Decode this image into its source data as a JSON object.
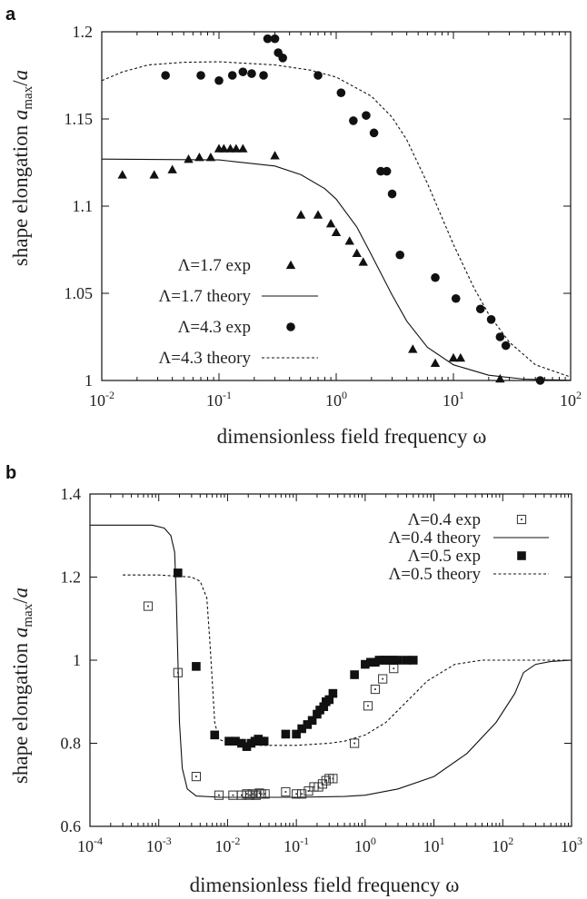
{
  "chart_data": [
    {
      "panel": "a",
      "type": "scatter",
      "xscale": "log",
      "xlim": [
        0.01,
        100
      ],
      "ylim": [
        1,
        1.2
      ],
      "xticks": [
        "10-2",
        "10-1",
        "100",
        "101",
        "102"
      ],
      "yticks": [
        "1",
        "1.05",
        "1.1",
        "1.15",
        "1.2"
      ],
      "xlabel": "dimensionless  field frequency ω",
      "ylabel": "shape elongation amax/a",
      "legend_position": "bottom-left",
      "series": [
        {
          "name": "Λ=1.7 exp",
          "kind": "markers",
          "marker": "triangle",
          "points": [
            [
              0.015,
              1.118
            ],
            [
              0.028,
              1.118
            ],
            [
              0.04,
              1.121
            ],
            [
              0.055,
              1.127
            ],
            [
              0.068,
              1.128
            ],
            [
              0.085,
              1.128
            ],
            [
              0.1,
              1.133
            ],
            [
              0.11,
              1.133
            ],
            [
              0.125,
              1.133
            ],
            [
              0.14,
              1.133
            ],
            [
              0.16,
              1.133
            ],
            [
              0.3,
              1.129
            ],
            [
              0.5,
              1.095
            ],
            [
              0.7,
              1.095
            ],
            [
              0.9,
              1.09
            ],
            [
              1.0,
              1.085
            ],
            [
              1.3,
              1.08
            ],
            [
              1.5,
              1.073
            ],
            [
              1.7,
              1.068
            ],
            [
              4.5,
              1.018
            ],
            [
              7.0,
              1.01
            ],
            [
              10.0,
              1.013
            ],
            [
              11.5,
              1.013
            ],
            [
              25.0,
              1.001
            ]
          ]
        },
        {
          "name": "Λ=1.7 theory",
          "kind": "line",
          "dash": "solid",
          "points": [
            [
              0.01,
              1.127
            ],
            [
              0.1,
              1.1265
            ],
            [
              0.3,
              1.123
            ],
            [
              0.5,
              1.118
            ],
            [
              0.8,
              1.11
            ],
            [
              1.0,
              1.104
            ],
            [
              1.5,
              1.088
            ],
            [
              2.0,
              1.072
            ],
            [
              3.0,
              1.049
            ],
            [
              4.0,
              1.034
            ],
            [
              6.0,
              1.019
            ],
            [
              10.0,
              1.009
            ],
            [
              20.0,
              1.003
            ],
            [
              40.0,
              1.0008
            ],
            [
              100.0,
              1.0001
            ]
          ]
        },
        {
          "name": "Λ=4.3 exp",
          "kind": "markers",
          "marker": "circle",
          "points": [
            [
              0.035,
              1.175
            ],
            [
              0.07,
              1.175
            ],
            [
              0.1,
              1.172
            ],
            [
              0.13,
              1.175
            ],
            [
              0.16,
              1.177
            ],
            [
              0.19,
              1.176
            ],
            [
              0.24,
              1.175
            ],
            [
              0.26,
              1.196
            ],
            [
              0.3,
              1.196
            ],
            [
              0.32,
              1.188
            ],
            [
              0.35,
              1.185
            ],
            [
              0.7,
              1.175
            ],
            [
              1.1,
              1.165
            ],
            [
              1.4,
              1.149
            ],
            [
              1.8,
              1.152
            ],
            [
              2.1,
              1.142
            ],
            [
              2.4,
              1.12
            ],
            [
              2.7,
              1.12
            ],
            [
              3.0,
              1.107
            ],
            [
              3.5,
              1.072
            ],
            [
              7.0,
              1.059
            ],
            [
              10.5,
              1.047
            ],
            [
              17.0,
              1.041
            ],
            [
              21.0,
              1.035
            ],
            [
              25.0,
              1.025
            ],
            [
              28.0,
              1.02
            ],
            [
              55.0,
              1.0
            ]
          ]
        },
        {
          "name": "Λ=4.3 theory",
          "kind": "line",
          "dash": "dashed",
          "points": [
            [
              0.01,
              1.172
            ],
            [
              0.015,
              1.177
            ],
            [
              0.025,
              1.181
            ],
            [
              0.05,
              1.1825
            ],
            [
              0.1,
              1.1828
            ],
            [
              0.3,
              1.181
            ],
            [
              0.6,
              1.178
            ],
            [
              1.0,
              1.174
            ],
            [
              2.0,
              1.163
            ],
            [
              3.0,
              1.151
            ],
            [
              4.0,
              1.138
            ],
            [
              6.0,
              1.113
            ],
            [
              10.0,
              1.078
            ],
            [
              15.0,
              1.053
            ],
            [
              20.0,
              1.038
            ],
            [
              30.0,
              1.022
            ],
            [
              50.0,
              1.009
            ],
            [
              100.0,
              1.002
            ]
          ]
        }
      ]
    },
    {
      "panel": "b",
      "type": "scatter",
      "xscale": "log",
      "xlim": [
        0.0001,
        1000
      ],
      "ylim": [
        0.6,
        1.4
      ],
      "xticks": [
        "10-4",
        "10-3",
        "10-2",
        "10-1",
        "100",
        "101",
        "102",
        "103"
      ],
      "yticks": [
        "0.6",
        "0.8",
        "1",
        "1.2",
        "1.4"
      ],
      "xlabel": "dimensionless  field frequency ω",
      "ylabel": "shape elongation amax/a",
      "legend_position": "top-right",
      "series": [
        {
          "name": "Λ=0.4 exp",
          "kind": "markers",
          "marker": "open-square",
          "points": [
            [
              0.0007,
              1.13
            ],
            [
              0.0019,
              0.97
            ],
            [
              0.0035,
              0.72
            ],
            [
              0.0075,
              0.675
            ],
            [
              0.012,
              0.675
            ],
            [
              0.016,
              0.675
            ],
            [
              0.019,
              0.678
            ],
            [
              0.021,
              0.675
            ],
            [
              0.023,
              0.678
            ],
            [
              0.026,
              0.675
            ],
            [
              0.029,
              0.68
            ],
            [
              0.031,
              0.678
            ],
            [
              0.035,
              0.678
            ],
            [
              0.07,
              0.683
            ],
            [
              0.1,
              0.678
            ],
            [
              0.12,
              0.678
            ],
            [
              0.15,
              0.685
            ],
            [
              0.18,
              0.695
            ],
            [
              0.21,
              0.695
            ],
            [
              0.24,
              0.702
            ],
            [
              0.27,
              0.71
            ],
            [
              0.3,
              0.715
            ],
            [
              0.34,
              0.715
            ],
            [
              0.7,
              0.8
            ],
            [
              1.1,
              0.89
            ],
            [
              1.4,
              0.93
            ],
            [
              1.8,
              0.955
            ],
            [
              2.6,
              0.98
            ]
          ]
        },
        {
          "name": "Λ=0.4 theory",
          "kind": "line",
          "dash": "solid",
          "points": [
            [
              0.0001,
              1.325
            ],
            [
              0.0008,
              1.325
            ],
            [
              0.0012,
              1.318
            ],
            [
              0.0015,
              1.3
            ],
            [
              0.0017,
              1.26
            ],
            [
              0.0018,
              1.15
            ],
            [
              0.0019,
              1.0
            ],
            [
              0.002,
              0.85
            ],
            [
              0.0022,
              0.74
            ],
            [
              0.0026,
              0.69
            ],
            [
              0.0035,
              0.673
            ],
            [
              0.008,
              0.67
            ],
            [
              0.03,
              0.67
            ],
            [
              0.1,
              0.67
            ],
            [
              0.5,
              0.672
            ],
            [
              1.0,
              0.675
            ],
            [
              3.0,
              0.69
            ],
            [
              10.0,
              0.72
            ],
            [
              30.0,
              0.775
            ],
            [
              80.0,
              0.85
            ],
            [
              150.0,
              0.92
            ],
            [
              200.0,
              0.97
            ],
            [
              300.0,
              0.99
            ],
            [
              500.0,
              0.997
            ],
            [
              1000.0,
              1.0
            ]
          ]
        },
        {
          "name": "Λ=0.5 exp",
          "kind": "markers",
          "marker": "filled-square",
          "points": [
            [
              0.0019,
              1.21
            ],
            [
              0.0035,
              0.985
            ],
            [
              0.0065,
              0.82
            ],
            [
              0.0105,
              0.805
            ],
            [
              0.013,
              0.805
            ],
            [
              0.016,
              0.8
            ],
            [
              0.019,
              0.792
            ],
            [
              0.022,
              0.8
            ],
            [
              0.025,
              0.805
            ],
            [
              0.028,
              0.81
            ],
            [
              0.031,
              0.805
            ],
            [
              0.034,
              0.805
            ],
            [
              0.07,
              0.822
            ],
            [
              0.1,
              0.822
            ],
            [
              0.12,
              0.835
            ],
            [
              0.145,
              0.845
            ],
            [
              0.17,
              0.855
            ],
            [
              0.2,
              0.87
            ],
            [
              0.22,
              0.88
            ],
            [
              0.25,
              0.888
            ],
            [
              0.27,
              0.9
            ],
            [
              0.3,
              0.905
            ],
            [
              0.34,
              0.92
            ],
            [
              0.7,
              0.965
            ],
            [
              1.0,
              0.99
            ],
            [
              1.2,
              0.995
            ],
            [
              1.4,
              0.995
            ],
            [
              1.6,
              1.0
            ],
            [
              1.8,
              1.0
            ],
            [
              2.0,
              1.0
            ],
            [
              2.3,
              1.0
            ],
            [
              2.6,
              1.0
            ],
            [
              3.0,
              1.0
            ],
            [
              4.0,
              1.0
            ],
            [
              5.0,
              1.0
            ]
          ]
        },
        {
          "name": "Λ=0.5 theory",
          "kind": "line",
          "dash": "dashed",
          "points": [
            [
              0.0003,
              1.205
            ],
            [
              0.001,
              1.205
            ],
            [
              0.003,
              1.2
            ],
            [
              0.004,
              1.19
            ],
            [
              0.005,
              1.15
            ],
            [
              0.0055,
              1.05
            ],
            [
              0.006,
              0.95
            ],
            [
              0.0065,
              0.85
            ],
            [
              0.0075,
              0.81
            ],
            [
              0.01,
              0.8
            ],
            [
              0.03,
              0.795
            ],
            [
              0.1,
              0.795
            ],
            [
              0.3,
              0.8
            ],
            [
              0.5,
              0.805
            ],
            [
              1.0,
              0.82
            ],
            [
              2.0,
              0.85
            ],
            [
              4.0,
              0.9
            ],
            [
              8.0,
              0.95
            ],
            [
              20.0,
              0.99
            ],
            [
              50.0,
              1.0
            ],
            [
              1000.0,
              1.0
            ]
          ]
        }
      ]
    }
  ],
  "panel_labels": {
    "a": "a",
    "b": "b"
  },
  "legend": {
    "a": [
      "Λ=1.7 exp",
      "Λ=1.7 theory",
      "Λ=4.3 exp",
      "Λ=4.3 theory"
    ],
    "b": [
      "Λ=0.4 exp",
      "Λ=0.4 theory",
      "Λ=0.5 exp",
      "Λ=0.5 theory"
    ]
  }
}
